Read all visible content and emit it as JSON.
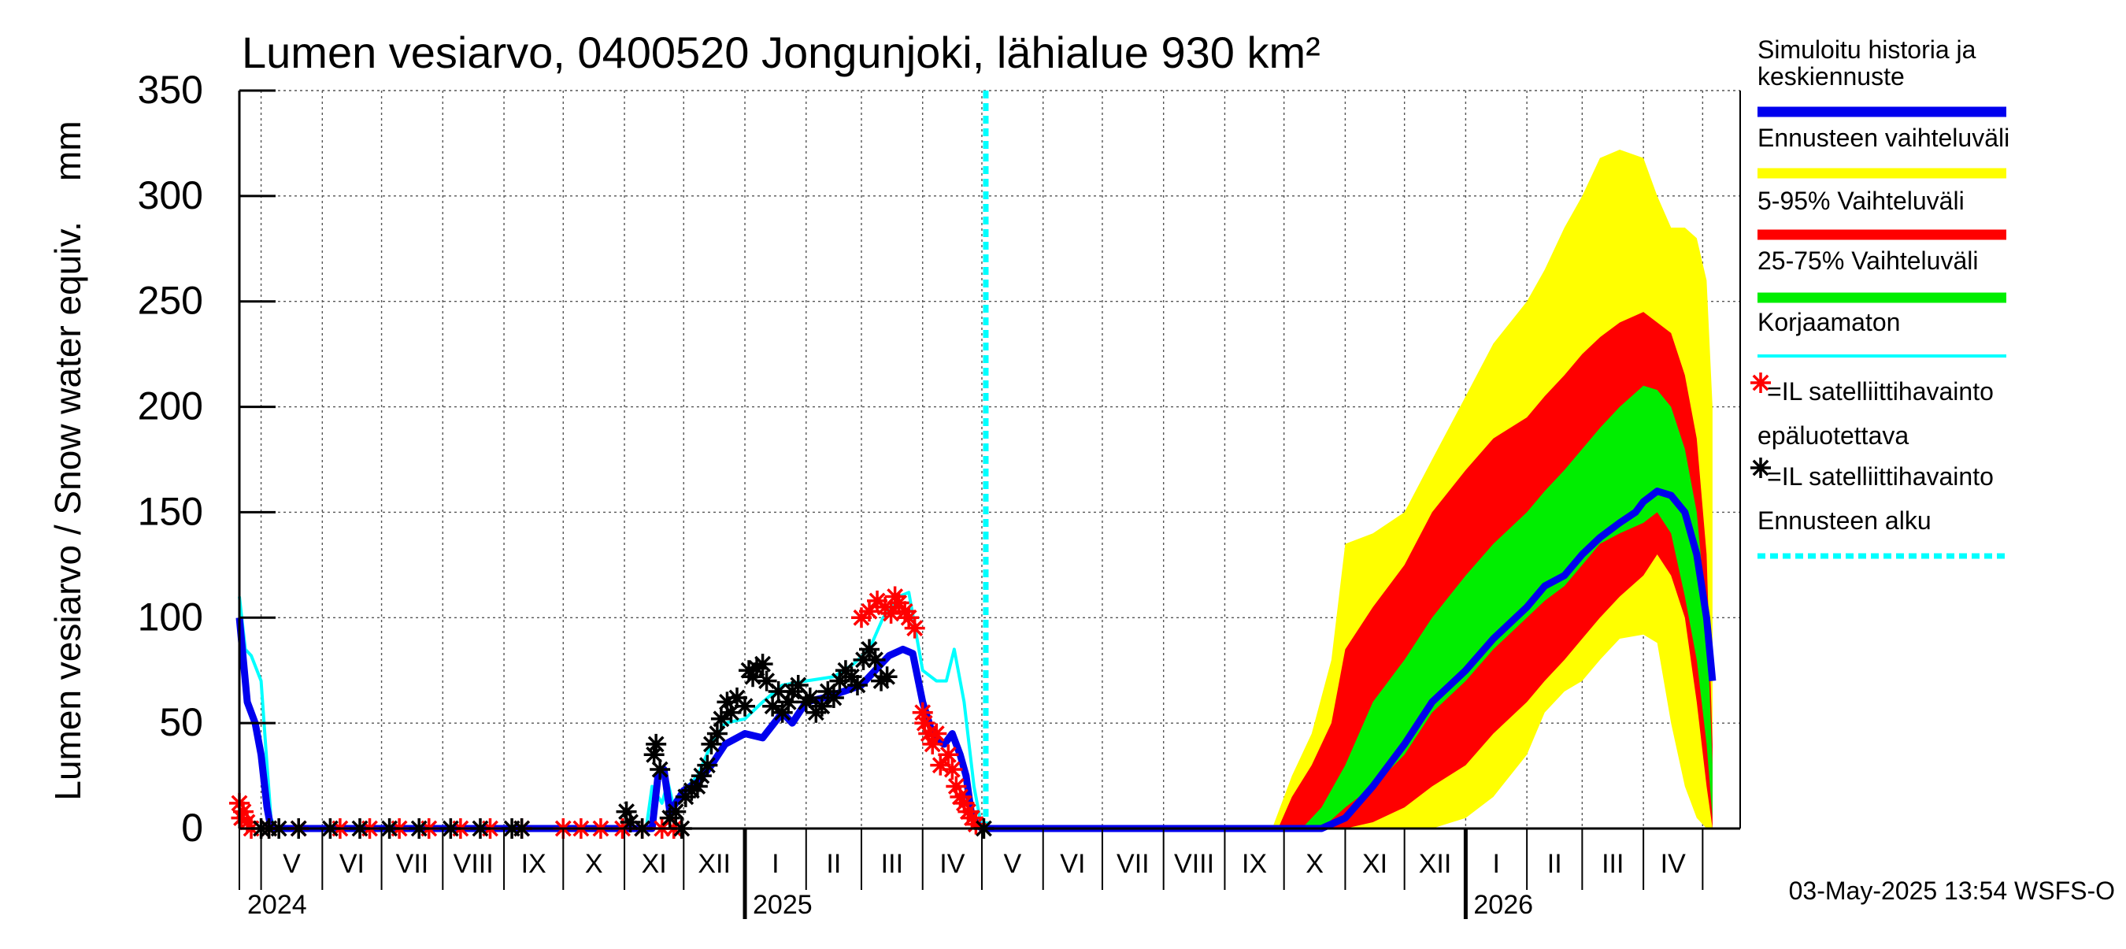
{
  "chart_data": {
    "type": "area",
    "title": "Lumen vesiarvo, 0400520 Jongunjoki, lähialue 930 km²",
    "ylabel": "Lumen vesiarvo / Snow water equiv.    mm",
    "ylim": [
      0,
      350
    ],
    "yticks": [
      "0",
      "50",
      "100",
      "150",
      "200",
      "250",
      "300",
      "350"
    ],
    "grid": true,
    "legend_position": "right",
    "x_domain": [
      "2024-04-20",
      "2026-05-20"
    ],
    "forecast_start": "2025-05-03",
    "footer": "03-May-2025 13:54 WSFS-O",
    "months": [
      {
        "label": "V",
        "start": "2024-05-01"
      },
      {
        "label": "VI",
        "start": "2024-06-01"
      },
      {
        "label": "VII",
        "start": "2024-07-01"
      },
      {
        "label": "VIII",
        "start": "2024-08-01"
      },
      {
        "label": "IX",
        "start": "2024-09-01"
      },
      {
        "label": "X",
        "start": "2024-10-01"
      },
      {
        "label": "XI",
        "start": "2024-11-01"
      },
      {
        "label": "XII",
        "start": "2024-12-01"
      },
      {
        "label": "I",
        "start": "2025-01-01"
      },
      {
        "label": "II",
        "start": "2025-02-01"
      },
      {
        "label": "III",
        "start": "2025-03-01"
      },
      {
        "label": "IV",
        "start": "2025-04-01"
      },
      {
        "label": "V",
        "start": "2025-05-01"
      },
      {
        "label": "VI",
        "start": "2025-06-01"
      },
      {
        "label": "VII",
        "start": "2025-07-01"
      },
      {
        "label": "VIII",
        "start": "2025-08-01"
      },
      {
        "label": "IX",
        "start": "2025-09-01"
      },
      {
        "label": "X",
        "start": "2025-10-01"
      },
      {
        "label": "XI",
        "start": "2025-11-01"
      },
      {
        "label": "XII",
        "start": "2025-12-01"
      },
      {
        "label": "I",
        "start": "2026-01-01"
      },
      {
        "label": "II",
        "start": "2026-02-01"
      },
      {
        "label": "III",
        "start": "2026-03-01"
      },
      {
        "label": "IV",
        "start": "2026-04-01"
      }
    ],
    "month_bounds": [
      "2024-05-01",
      "2024-06-01",
      "2024-07-01",
      "2024-08-01",
      "2024-09-01",
      "2024-10-01",
      "2024-11-01",
      "2024-12-01",
      "2025-01-01",
      "2025-02-01",
      "2025-03-01",
      "2025-04-01",
      "2025-05-01",
      "2025-06-01",
      "2025-07-01",
      "2025-08-01",
      "2025-09-01",
      "2025-10-01",
      "2025-11-01",
      "2025-12-01",
      "2026-01-01",
      "2026-02-01",
      "2026-03-01",
      "2026-04-01",
      "2026-05-01"
    ],
    "years": [
      {
        "label": "2024",
        "start": "2024-04-20"
      },
      {
        "label": "2025",
        "start": "2025-01-01"
      },
      {
        "label": "2026",
        "start": "2026-01-01"
      }
    ],
    "legend": [
      {
        "label": "Simuloitu historia ja\nkeskiennuste",
        "color": "#0000ee",
        "style": "line"
      },
      {
        "label": "Ennusteen vaihteluväli",
        "color": "#ffff00",
        "style": "line"
      },
      {
        "label": "5-95% Vaihteluväli",
        "color": "#ff0000",
        "style": "line"
      },
      {
        "label": "25-75% Vaihteluväli",
        "color": "#00ee00",
        "style": "line"
      },
      {
        "label": "Korjaamaton",
        "color": "#00ffff",
        "style": "thin"
      },
      {
        "label": "=IL satelliittihavainto\nepäluotettava",
        "color": "#ff0000",
        "style": "star"
      },
      {
        "label": "=IL satelliittihavainto",
        "color": "#000000",
        "style": "star"
      },
      {
        "label": "Ennusteen alku",
        "color": "#00ffff",
        "style": "dash"
      }
    ],
    "series": [
      {
        "name": "Ennusteen vaihteluväli",
        "kind": "band",
        "color": "#ffff00",
        "x": [
          "2025-09-25",
          "2025-10-05",
          "2025-10-15",
          "2025-10-25",
          "2025-11-01",
          "2025-11-15",
          "2025-12-01",
          "2025-12-15",
          "2026-01-01",
          "2026-01-15",
          "2026-02-01",
          "2026-02-10",
          "2026-02-20",
          "2026-03-01",
          "2026-03-10",
          "2026-03-20",
          "2026-04-01",
          "2026-04-08",
          "2026-04-15",
          "2026-04-22",
          "2026-04-28",
          "2026-05-03",
          "2026-05-06"
        ],
        "low": [
          0,
          0,
          0,
          0,
          0,
          0,
          0,
          0,
          5,
          15,
          35,
          55,
          65,
          70,
          80,
          90,
          92,
          88,
          50,
          20,
          5,
          0,
          0
        ],
        "high": [
          0,
          25,
          45,
          80,
          135,
          140,
          150,
          175,
          205,
          230,
          250,
          265,
          285,
          300,
          318,
          322,
          318,
          300,
          285,
          285,
          280,
          260,
          200
        ]
      },
      {
        "name": "5-95% Vaihteluväli",
        "kind": "band",
        "color": "#ff0000",
        "x": [
          "2025-09-28",
          "2025-10-05",
          "2025-10-15",
          "2025-10-25",
          "2025-11-01",
          "2025-11-15",
          "2025-12-01",
          "2025-12-15",
          "2026-01-01",
          "2026-01-15",
          "2026-02-01",
          "2026-02-10",
          "2026-02-20",
          "2026-03-01",
          "2026-03-10",
          "2026-03-20",
          "2026-04-01",
          "2026-04-08",
          "2026-04-15",
          "2026-04-22",
          "2026-04-28",
          "2026-05-03",
          "2026-05-06"
        ],
        "low": [
          0,
          0,
          0,
          0,
          0,
          3,
          10,
          20,
          30,
          45,
          60,
          70,
          80,
          90,
          100,
          110,
          120,
          130,
          120,
          100,
          60,
          20,
          0
        ],
        "high": [
          0,
          15,
          30,
          50,
          85,
          105,
          125,
          150,
          170,
          185,
          195,
          205,
          215,
          225,
          233,
          240,
          245,
          240,
          235,
          215,
          185,
          130,
          40
        ]
      },
      {
        "name": "25-75% Vaihteluväli",
        "kind": "band",
        "color": "#00ee00",
        "x": [
          "2025-10-10",
          "2025-10-20",
          "2025-11-01",
          "2025-11-15",
          "2025-12-01",
          "2025-12-15",
          "2026-01-01",
          "2026-01-15",
          "2026-02-01",
          "2026-02-10",
          "2026-02-20",
          "2026-03-01",
          "2026-03-10",
          "2026-03-20",
          "2026-04-01",
          "2026-04-08",
          "2026-04-15",
          "2026-04-22",
          "2026-04-28",
          "2026-05-03",
          "2026-05-06"
        ],
        "low": [
          0,
          0,
          10,
          20,
          35,
          55,
          70,
          85,
          100,
          108,
          115,
          125,
          135,
          140,
          145,
          150,
          140,
          110,
          80,
          40,
          5
        ],
        "high": [
          0,
          10,
          30,
          60,
          80,
          100,
          120,
          135,
          150,
          160,
          170,
          180,
          190,
          200,
          210,
          208,
          200,
          180,
          150,
          100,
          30
        ]
      },
      {
        "name": "Korjaamaton",
        "kind": "line",
        "color": "#00ffff",
        "x": [
          "2024-04-20",
          "2024-04-23",
          "2024-04-26",
          "2024-05-01",
          "2024-05-04",
          "2024-05-06",
          "2024-05-08",
          "2024-11-12",
          "2024-11-15",
          "2024-11-20",
          "2024-11-23",
          "2024-11-26",
          "2024-12-01",
          "2024-12-08",
          "2024-12-15",
          "2024-12-22",
          "2025-01-01",
          "2025-01-10",
          "2025-01-20",
          "2025-02-01",
          "2025-02-15",
          "2025-02-25",
          "2025-03-05",
          "2025-03-12",
          "2025-03-20",
          "2025-03-25",
          "2025-04-01",
          "2025-04-08",
          "2025-04-13",
          "2025-04-17",
          "2025-04-22",
          "2025-04-27",
          "2025-05-01"
        ],
        "y": [
          110,
          85,
          82,
          70,
          30,
          5,
          0,
          0,
          20,
          12,
          22,
          10,
          18,
          25,
          40,
          50,
          52,
          60,
          68,
          70,
          72,
          78,
          85,
          100,
          110,
          112,
          75,
          70,
          70,
          85,
          60,
          20,
          0
        ]
      },
      {
        "name": "Simuloitu historia ja keskiennuste",
        "kind": "line",
        "color": "#0000ee",
        "x": [
          "2024-04-20",
          "2024-04-22",
          "2024-04-24",
          "2024-04-26",
          "2024-04-28",
          "2024-05-01",
          "2024-05-04",
          "2024-05-06",
          "2024-05-08",
          "2024-11-15",
          "2024-11-18",
          "2024-11-21",
          "2024-11-24",
          "2024-11-27",
          "2024-12-01",
          "2024-12-08",
          "2024-12-15",
          "2024-12-22",
          "2025-01-01",
          "2025-01-10",
          "2025-01-20",
          "2025-01-25",
          "2025-02-01",
          "2025-02-10",
          "2025-02-20",
          "2025-03-01",
          "2025-03-08",
          "2025-03-15",
          "2025-03-22",
          "2025-03-27",
          "2025-04-01",
          "2025-04-05",
          "2025-04-08",
          "2025-04-12",
          "2025-04-16",
          "2025-04-20",
          "2025-04-23",
          "2025-04-26",
          "2025-05-01",
          "2025-10-01",
          "2025-10-20",
          "2025-11-01",
          "2025-11-15",
          "2025-12-01",
          "2025-12-15",
          "2026-01-01",
          "2026-01-15",
          "2026-02-01",
          "2026-02-10",
          "2026-02-20",
          "2026-03-01",
          "2026-03-10",
          "2026-03-20",
          "2026-03-28",
          "2026-04-01",
          "2026-04-08",
          "2026-04-15",
          "2026-04-22",
          "2026-04-28",
          "2026-05-03",
          "2026-05-06"
        ],
        "y": [
          100,
          80,
          60,
          55,
          50,
          35,
          10,
          0,
          0,
          0,
          25,
          28,
          8,
          12,
          18,
          22,
          30,
          40,
          45,
          43,
          55,
          50,
          60,
          62,
          65,
          68,
          75,
          82,
          85,
          83,
          60,
          48,
          42,
          40,
          45,
          35,
          25,
          5,
          0,
          0,
          0,
          5,
          20,
          40,
          60,
          75,
          90,
          105,
          115,
          120,
          130,
          138,
          145,
          150,
          155,
          160,
          158,
          150,
          130,
          100,
          70
        ]
      },
      {
        "name": "=IL satelliittihavainto epäluotettava",
        "kind": "scatter",
        "color": "#ff0000",
        "x": [
          "2024-04-20",
          "2024-04-21",
          "2024-04-22",
          "2024-04-24",
          "2024-04-26",
          "2024-05-05",
          "2024-05-20",
          "2024-06-10",
          "2024-06-25",
          "2024-07-10",
          "2024-07-25",
          "2024-08-10",
          "2024-08-25",
          "2024-09-10",
          "2024-10-01",
          "2024-10-10",
          "2024-10-20",
          "2024-10-31",
          "2024-11-10",
          "2024-11-20",
          "2024-11-26",
          "2025-03-01",
          "2025-03-05",
          "2025-03-09",
          "2025-03-13",
          "2025-03-16",
          "2025-03-18",
          "2025-03-20",
          "2025-03-23",
          "2025-03-25",
          "2025-03-28",
          "2025-04-01",
          "2025-04-02",
          "2025-04-04",
          "2025-04-06",
          "2025-04-08",
          "2025-04-10",
          "2025-04-14",
          "2025-04-16",
          "2025-04-18",
          "2025-04-20",
          "2025-04-22",
          "2025-04-24",
          "2025-04-26",
          "2025-04-28"
        ],
        "y": [
          12,
          5,
          8,
          3,
          0,
          0,
          0,
          0,
          0,
          0,
          0,
          0,
          0,
          0,
          0,
          0,
          0,
          0,
          0,
          0,
          0,
          100,
          103,
          108,
          105,
          102,
          110,
          107,
          103,
          100,
          95,
          55,
          50,
          45,
          40,
          45,
          30,
          35,
          28,
          20,
          15,
          12,
          8,
          5,
          2
        ]
      },
      {
        "name": "=IL satelliittihavainto",
        "kind": "scatter",
        "color": "#000000",
        "x": [
          "2024-05-01",
          "2024-05-05",
          "2024-05-10",
          "2024-05-20",
          "2024-06-05",
          "2024-06-20",
          "2024-07-05",
          "2024-07-20",
          "2024-08-05",
          "2024-08-20",
          "2024-09-05",
          "2024-09-10",
          "2024-11-02",
          "2024-11-04",
          "2024-11-10",
          "2024-11-16",
          "2024-11-17",
          "2024-11-19",
          "2024-11-24",
          "2024-11-27",
          "2024-11-30",
          "2024-12-02",
          "2024-12-05",
          "2024-12-08",
          "2024-12-10",
          "2024-12-13",
          "2024-12-15",
          "2024-12-18",
          "2024-12-20",
          "2024-12-23",
          "2024-12-25",
          "2024-12-28",
          "2025-01-01",
          "2025-01-03",
          "2025-01-05",
          "2025-01-07",
          "2025-01-10",
          "2025-01-12",
          "2025-01-15",
          "2025-01-18",
          "2025-01-20",
          "2025-01-23",
          "2025-01-25",
          "2025-01-28",
          "2025-02-01",
          "2025-02-03",
          "2025-02-06",
          "2025-02-09",
          "2025-02-12",
          "2025-02-15",
          "2025-02-18",
          "2025-02-21",
          "2025-02-24",
          "2025-02-27",
          "2025-03-02",
          "2025-03-05",
          "2025-03-08",
          "2025-03-11",
          "2025-03-14",
          "2025-05-02"
        ],
        "y": [
          0,
          0,
          0,
          0,
          0,
          0,
          0,
          0,
          0,
          0,
          0,
          0,
          8,
          3,
          0,
          35,
          40,
          28,
          5,
          8,
          0,
          15,
          18,
          20,
          25,
          30,
          40,
          45,
          52,
          60,
          55,
          62,
          58,
          75,
          72,
          76,
          78,
          70,
          58,
          65,
          55,
          60,
          65,
          68,
          60,
          62,
          55,
          58,
          65,
          62,
          70,
          75,
          72,
          68,
          80,
          85,
          80,
          70,
          72,
          0
        ]
      }
    ]
  }
}
